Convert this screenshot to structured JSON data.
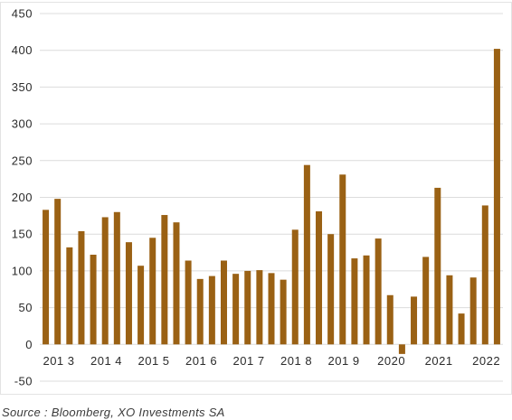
{
  "chart_data": {
    "type": "bar",
    "title": "",
    "xlabel": "",
    "ylabel": "",
    "ylim": [
      -50,
      450
    ],
    "yticks": [
      -50,
      0,
      50,
      100,
      150,
      200,
      250,
      300,
      350,
      400,
      450
    ],
    "grid": true,
    "legend": "none",
    "bar_color": "#9A6114",
    "x_tick_labels": [
      "201 3",
      "201 4",
      "201 5",
      "201 6",
      "201 7",
      "201 8",
      "201 9",
      "2020",
      "2021",
      "2022"
    ],
    "x_tick_bar_index": [
      0,
      4,
      8,
      12,
      16,
      20,
      24,
      28,
      32,
      36
    ],
    "values": [
      183,
      198,
      132,
      154,
      122,
      173,
      180,
      139,
      107,
      145,
      176,
      166,
      114,
      89,
      93,
      114,
      96,
      100,
      101,
      97,
      88,
      156,
      244,
      181,
      150,
      231,
      117,
      121,
      144,
      67,
      -13,
      65,
      119,
      213,
      94,
      42,
      91,
      189,
      402
    ]
  },
  "source": "Source : Bloomberg, XO Investments SA"
}
